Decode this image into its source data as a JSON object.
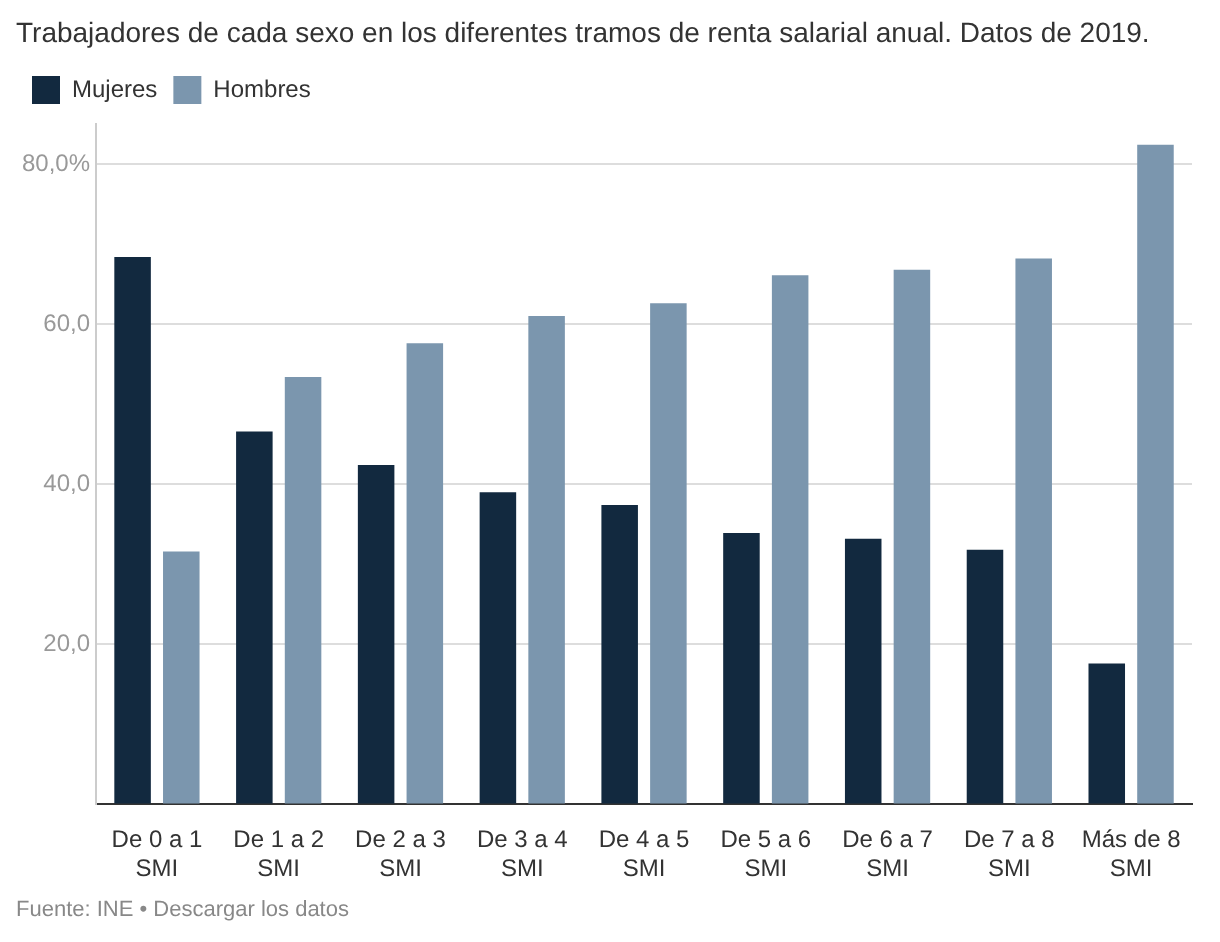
{
  "chart_data": {
    "type": "bar",
    "title": "Trabajadores de cada sexo en los diferentes tramos de renta salarial anual. Datos de 2019.",
    "categories": [
      "De 0 a 1 SMI",
      "De 1 a 2 SMI",
      "De 2 a 3 SMI",
      "De 3 a 4 SMI",
      "De 4 a 5 SMI",
      "De 5 a 6 SMI",
      "De 6 a 7 SMI",
      "De 7 a 8 SMI",
      "Más de 8 SMI"
    ],
    "series": [
      {
        "name": "Mujeres",
        "color": "#12293f",
        "values": [
          68.4,
          46.6,
          42.4,
          39.0,
          37.4,
          33.9,
          33.2,
          31.8,
          17.6
        ]
      },
      {
        "name": "Hombres",
        "color": "#7b96ae",
        "values": [
          31.6,
          53.4,
          57.6,
          61.0,
          62.6,
          66.1,
          66.8,
          68.2,
          82.4
        ]
      }
    ],
    "yticks": [
      {
        "value": 0,
        "label": null
      },
      {
        "value": 20,
        "label": "20,0"
      },
      {
        "value": 40,
        "label": "40,0"
      },
      {
        "value": 60,
        "label": "60,0"
      },
      {
        "value": 80,
        "label": "80,0%"
      }
    ],
    "ylim": [
      0,
      85
    ],
    "grid": "y",
    "legend": "top left",
    "annotations": [
      "Fuente: INE • Descargar los datos"
    ]
  }
}
